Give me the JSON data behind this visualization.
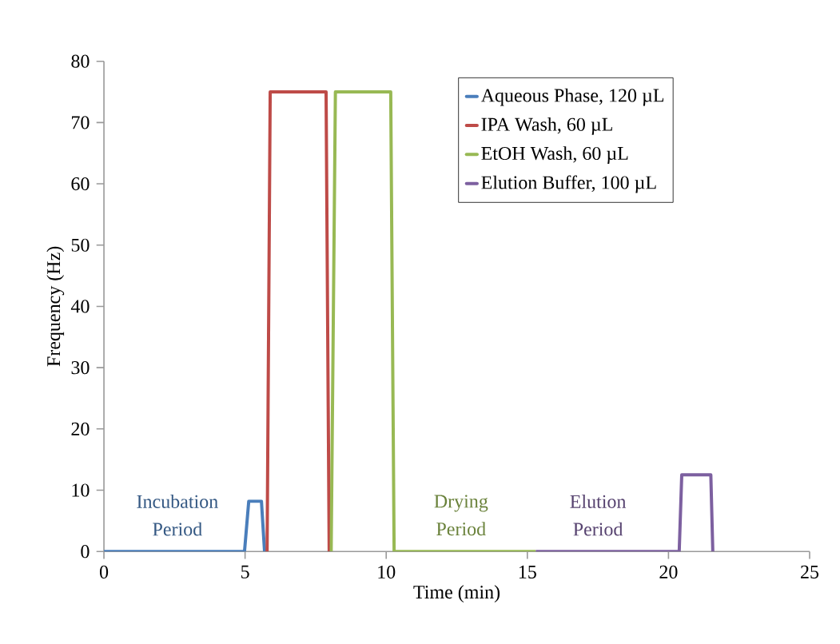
{
  "chart_data": {
    "type": "line",
    "xlabel": "Time (min)",
    "ylabel": "Frequency (Hz)",
    "xlim": [
      0,
      25
    ],
    "ylim": [
      0,
      80
    ],
    "xticks": [
      0,
      5,
      10,
      15,
      20,
      25
    ],
    "yticks": [
      0,
      10,
      20,
      30,
      40,
      50,
      60,
      70,
      80
    ],
    "grid": false,
    "legend": "top right",
    "marker": "none",
    "line_style": "solid",
    "series": [
      {
        "name": "Aqueous Phase, 120 µL",
        "color": "#4a7ebb",
        "x": [
          0,
          4.98,
          5.13,
          5.58,
          5.69
        ],
        "values": [
          0,
          0,
          8.2,
          8.2,
          0
        ]
      },
      {
        "name": "IPA Wash, 60 µL",
        "color": "#be4b48",
        "x": [
          5.78,
          5.89,
          7.87,
          7.98
        ],
        "values": [
          0,
          75,
          75,
          0
        ]
      },
      {
        "name": "EtOH Wash, 60 µL",
        "color": "#98b954",
        "x": [
          8.05,
          8.2,
          10.16,
          10.28,
          15.3
        ],
        "values": [
          0,
          75,
          75,
          0,
          0
        ]
      },
      {
        "name": "Elution Buffer, 100 µL",
        "color": "#7d60a0",
        "x": [
          15.3,
          20.38,
          20.47,
          21.5,
          21.57
        ],
        "values": [
          0,
          0,
          12.5,
          12.5,
          0
        ]
      }
    ],
    "annotations": [
      "Incubation Period",
      "Drying Period",
      "Elution Period"
    ]
  }
}
